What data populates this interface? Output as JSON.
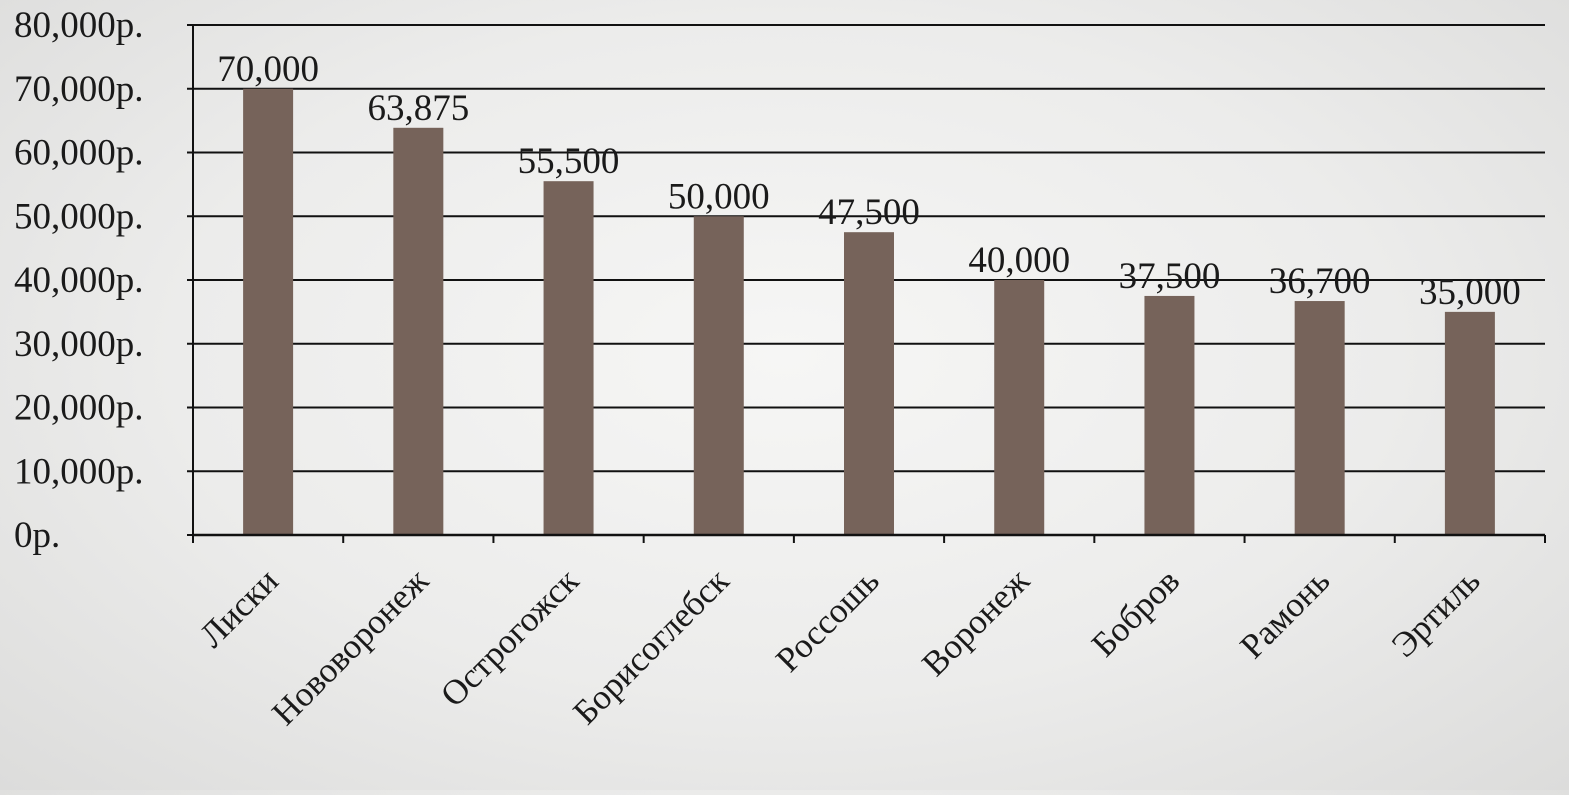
{
  "chart_data": {
    "type": "bar",
    "title": "",
    "xlabel": "",
    "ylabel": "",
    "categories": [
      "Лиски",
      "Нововоронеж",
      "Острогожск",
      "Борисоглебск",
      "Россошь",
      "Воронеж",
      "Бобров",
      "Рамонь",
      "Эртиль"
    ],
    "values": [
      70000,
      63875,
      55500,
      50000,
      47500,
      40000,
      37500,
      36700,
      35000
    ],
    "data_labels": [
      "70,000",
      "63,875",
      "55,500",
      "50,000",
      "47,500",
      "40,000",
      "37,500",
      "36,700",
      "35,000"
    ],
    "ylim": [
      0,
      80000
    ],
    "y_ticks": [
      0,
      10000,
      20000,
      30000,
      40000,
      50000,
      60000,
      70000,
      80000
    ],
    "y_tick_labels": [
      "0р.",
      "10,000р.",
      "20,000р.",
      "30,000р.",
      "40,000р.",
      "50,000р.",
      "60,000р.",
      "70,000р.",
      "80,000р."
    ],
    "grid": true,
    "legend": "none",
    "colors": {
      "bar": "#76635a",
      "grid": "#111111",
      "text": "#1a1a1a"
    }
  }
}
